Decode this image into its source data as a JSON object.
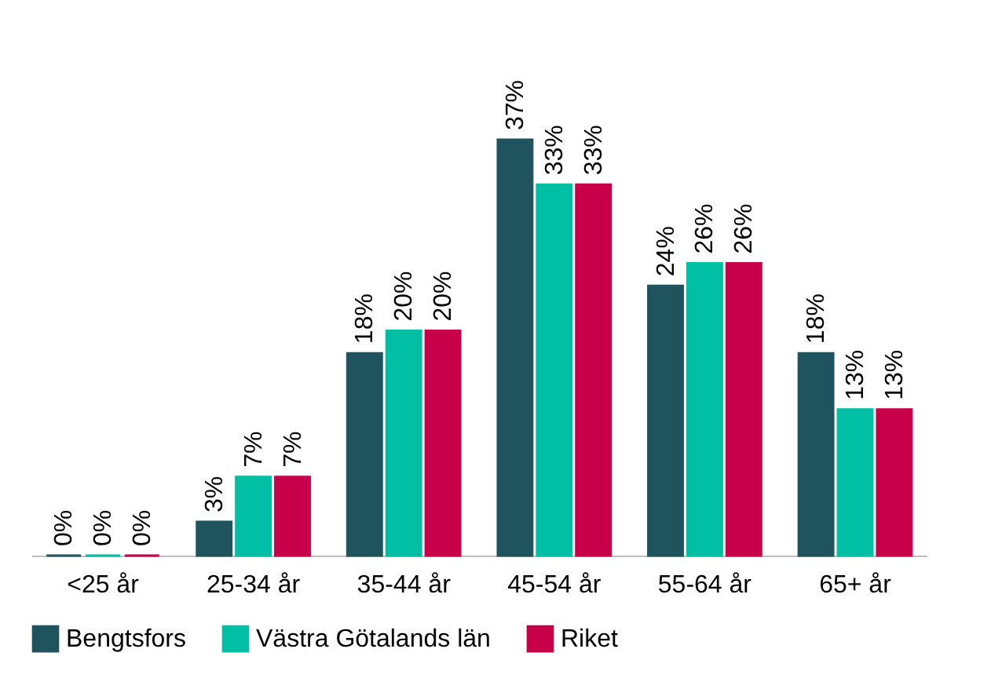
{
  "chart_data": {
    "type": "bar",
    "categories": [
      "<25 år",
      "25-34 år",
      "35-44 år",
      "45-54 år",
      "55-64 år",
      "65+ år"
    ],
    "series": [
      {
        "name": "Bengtsfors",
        "color": "#1f545e",
        "values": [
          0,
          3,
          18,
          37,
          24,
          18
        ],
        "value_labels": [
          "0%",
          "3%",
          "18%",
          "37%",
          "24%",
          "18%"
        ]
      },
      {
        "name": "Västra Götalands län",
        "color": "#00bfa5",
        "values": [
          0,
          7,
          20,
          33,
          26,
          13
        ],
        "value_labels": [
          "0%",
          "7%",
          "20%",
          "33%",
          "26%",
          "13%"
        ]
      },
      {
        "name": "Riket",
        "color": "#c8004a",
        "values": [
          0,
          7,
          20,
          33,
          26,
          13
        ],
        "value_labels": [
          "0%",
          "7%",
          "20%",
          "33%",
          "26%",
          "13%"
        ]
      }
    ],
    "legend": "bottom",
    "grid": false
  }
}
